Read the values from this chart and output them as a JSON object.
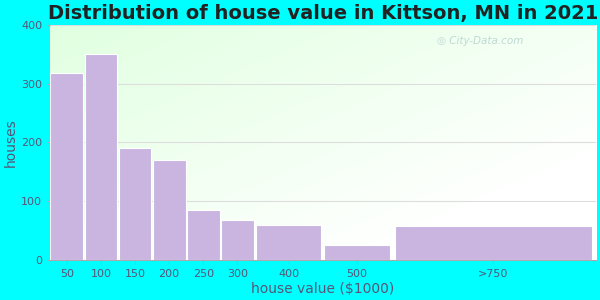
{
  "title": "Distribution of house value in Kittson, MN in 2021",
  "xlabel": "house value ($1000)",
  "ylabel": "houses",
  "categories": [
    "50",
    "100",
    "150",
    "200",
    "250",
    "300",
    "400",
    "500",
    ">750"
  ],
  "values": [
    318,
    350,
    190,
    170,
    85,
    68,
    60,
    25,
    58
  ],
  "bar_color": "#c9b5e0",
  "bar_edge_color": "#ffffff",
  "background_outer": "#00ffff",
  "ylim": [
    0,
    400
  ],
  "yticks": [
    0,
    100,
    200,
    300,
    400
  ],
  "title_fontsize": 14,
  "title_color": "#222222",
  "axis_label_fontsize": 10,
  "tick_fontsize": 8,
  "tick_color": "#555577",
  "axis_label_color": "#555577",
  "watermark_text": "City-Data.com",
  "watermark_color": "#aac8c8",
  "watermark_alpha": 0.7,
  "grid_color": "#dddddd",
  "bin_edges": [
    0,
    50,
    100,
    150,
    200,
    250,
    300,
    400,
    500,
    800
  ]
}
